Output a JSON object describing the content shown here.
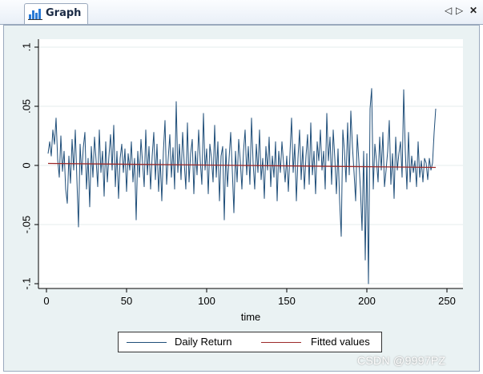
{
  "tab": {
    "label": "Graph",
    "icon": "bar-chart-icon"
  },
  "controls": {
    "prev": "◁",
    "next": "▷",
    "close": "✕"
  },
  "watermark": "CSDN @9997PZ",
  "colors": {
    "daily": "#1f4e79",
    "fitted": "#9c2a2a",
    "grid": "#e6ecec",
    "frame": "#eaf2f3"
  },
  "chart_data": {
    "type": "line",
    "xlabel": "time",
    "ylabel": "",
    "xlim": [
      0,
      250
    ],
    "ylim": [
      -0.1,
      0.1
    ],
    "xticks": [
      "0",
      "50",
      "100",
      "150",
      "200",
      "250"
    ],
    "yticks": [
      "-.1",
      "-.05",
      "0",
      ".05",
      ".1"
    ],
    "grid": true,
    "legend": "bottom",
    "series": [
      {
        "name": "Daily Return",
        "color": "#1f4e79",
        "x": [
          1,
          2,
          3,
          4,
          5,
          6,
          7,
          8,
          9,
          10,
          11,
          12,
          13,
          14,
          15,
          16,
          17,
          18,
          19,
          20,
          21,
          22,
          23,
          24,
          25,
          26,
          27,
          28,
          29,
          30,
          31,
          32,
          33,
          34,
          35,
          36,
          37,
          38,
          39,
          40,
          41,
          42,
          43,
          44,
          45,
          46,
          47,
          48,
          49,
          50,
          51,
          52,
          53,
          54,
          55,
          56,
          57,
          58,
          59,
          60,
          61,
          62,
          63,
          64,
          65,
          66,
          67,
          68,
          69,
          70,
          71,
          72,
          73,
          74,
          75,
          76,
          77,
          78,
          79,
          80,
          81,
          82,
          83,
          84,
          85,
          86,
          87,
          88,
          89,
          90,
          91,
          92,
          93,
          94,
          95,
          96,
          97,
          98,
          99,
          100,
          101,
          102,
          103,
          104,
          105,
          106,
          107,
          108,
          109,
          110,
          111,
          112,
          113,
          114,
          115,
          116,
          117,
          118,
          119,
          120,
          121,
          122,
          123,
          124,
          125,
          126,
          127,
          128,
          129,
          130,
          131,
          132,
          133,
          134,
          135,
          136,
          137,
          138,
          139,
          140,
          141,
          142,
          143,
          144,
          145,
          146,
          147,
          148,
          149,
          150,
          151,
          152,
          153,
          154,
          155,
          156,
          157,
          158,
          159,
          160,
          161,
          162,
          163,
          164,
          165,
          166,
          167,
          168,
          169,
          170,
          171,
          172,
          173,
          174,
          175,
          176,
          177,
          178,
          179,
          180,
          181,
          182,
          183,
          184,
          185,
          186,
          187,
          188,
          189,
          190,
          191,
          192,
          193,
          194,
          195,
          196,
          197,
          198,
          199,
          200,
          201,
          202,
          203,
          204,
          205,
          206,
          207,
          208,
          209,
          210,
          211,
          212,
          213,
          214,
          215,
          216,
          217,
          218,
          219,
          220,
          221,
          222,
          223,
          224,
          225,
          226,
          227,
          228,
          229,
          230,
          231,
          232,
          233,
          234,
          235,
          236,
          237,
          238,
          239,
          240,
          241,
          242,
          243
        ],
        "values": [
          0.01,
          0.02,
          0.008,
          0.03,
          0.018,
          0.04,
          0.005,
          -0.01,
          0.025,
          -0.005,
          0.012,
          -0.02,
          -0.032,
          0.008,
          -0.015,
          0.022,
          -0.004,
          0.03,
          -0.012,
          -0.052,
          0.018,
          -0.008,
          0.015,
          0.028,
          -0.02,
          0.006,
          -0.035,
          0.016,
          -0.01,
          0.024,
          0.004,
          -0.018,
          0.03,
          -0.006,
          0.012,
          -0.026,
          0.02,
          -0.014,
          0.008,
          0.026,
          -0.004,
          0.034,
          -0.018,
          0.012,
          -0.028,
          0.006,
          0.018,
          -0.006,
          0.014,
          -0.022,
          0.01,
          -0.004,
          0.02,
          -0.014,
          0.006,
          -0.046,
          0.012,
          -0.01,
          0.022,
          0.002,
          -0.018,
          0.03,
          -0.008,
          0.016,
          -0.02,
          0.008,
          0.028,
          -0.012,
          0.018,
          -0.022,
          0.005,
          -0.03,
          0.012,
          0.038,
          -0.016,
          0.006,
          0.026,
          -0.01,
          0.015,
          -0.02,
          0.054,
          -0.006,
          0.018,
          -0.012,
          0.028,
          0.002,
          -0.02,
          0.036,
          -0.014,
          0.01,
          0.022,
          -0.024,
          0.012,
          -0.008,
          0.03,
          0.004,
          -0.016,
          0.044,
          -0.004,
          0.014,
          -0.024,
          0.018,
          0.006,
          -0.014,
          0.034,
          -0.01,
          0.02,
          -0.03,
          0.008,
          0.016,
          -0.046,
          0.014,
          -0.018,
          0.006,
          0.028,
          -0.004,
          -0.04,
          0.012,
          -0.014,
          0.022,
          0.004,
          -0.02,
          0.012,
          0.03,
          -0.008,
          0.016,
          -0.016,
          0.04,
          0.002,
          -0.02,
          0.018,
          -0.006,
          0.03,
          -0.012,
          0.006,
          -0.028,
          0.016,
          -0.004,
          0.024,
          -0.018,
          0.008,
          -0.01,
          0.02,
          -0.03,
          0.012,
          -0.006,
          0.02,
          0.002,
          -0.014,
          0.008,
          -0.022,
          0.01,
          0.04,
          -0.006,
          0.018,
          -0.03,
          0.006,
          0.03,
          -0.012,
          0.016,
          -0.02,
          0.008,
          0.026,
          -0.016,
          0.036,
          -0.008,
          0.012,
          -0.024,
          0.02,
          0.004,
          0.03,
          -0.004,
          0.012,
          -0.02,
          0.044,
          0.004,
          0.024,
          -0.016,
          0.03,
          0.006,
          -0.024,
          0.014,
          -0.03,
          -0.06,
          0.03,
          0.012,
          -0.014,
          0.036,
          -0.008,
          0.046,
          0.016,
          -0.006,
          -0.03,
          0.026,
          0.004,
          -0.02,
          -0.055,
          0.012,
          -0.08,
          0.01,
          -0.1,
          0.048,
          0.065,
          -0.02,
          0.018,
          0.004,
          -0.014,
          0.024,
          -0.004,
          0.028,
          -0.018,
          -0.004,
          0.012,
          0.038,
          -0.016,
          0.01,
          -0.028,
          0.024,
          -0.004,
          0.01,
          0.02,
          -0.01,
          0.064,
          0.012,
          -0.02,
          0.028,
          -0.014,
          0.008,
          -0.006,
          0.004,
          -0.018,
          0.02,
          -0.01,
          0.004,
          -0.014,
          0.006,
          0.002,
          -0.012,
          0.006,
          -0.004,
          0.002,
          0.028,
          0.048
        ]
      },
      {
        "name": "Fitted values",
        "color": "#9c2a2a",
        "x": [
          1,
          243
        ],
        "values": [
          0.0017,
          -0.0017
        ]
      }
    ]
  }
}
